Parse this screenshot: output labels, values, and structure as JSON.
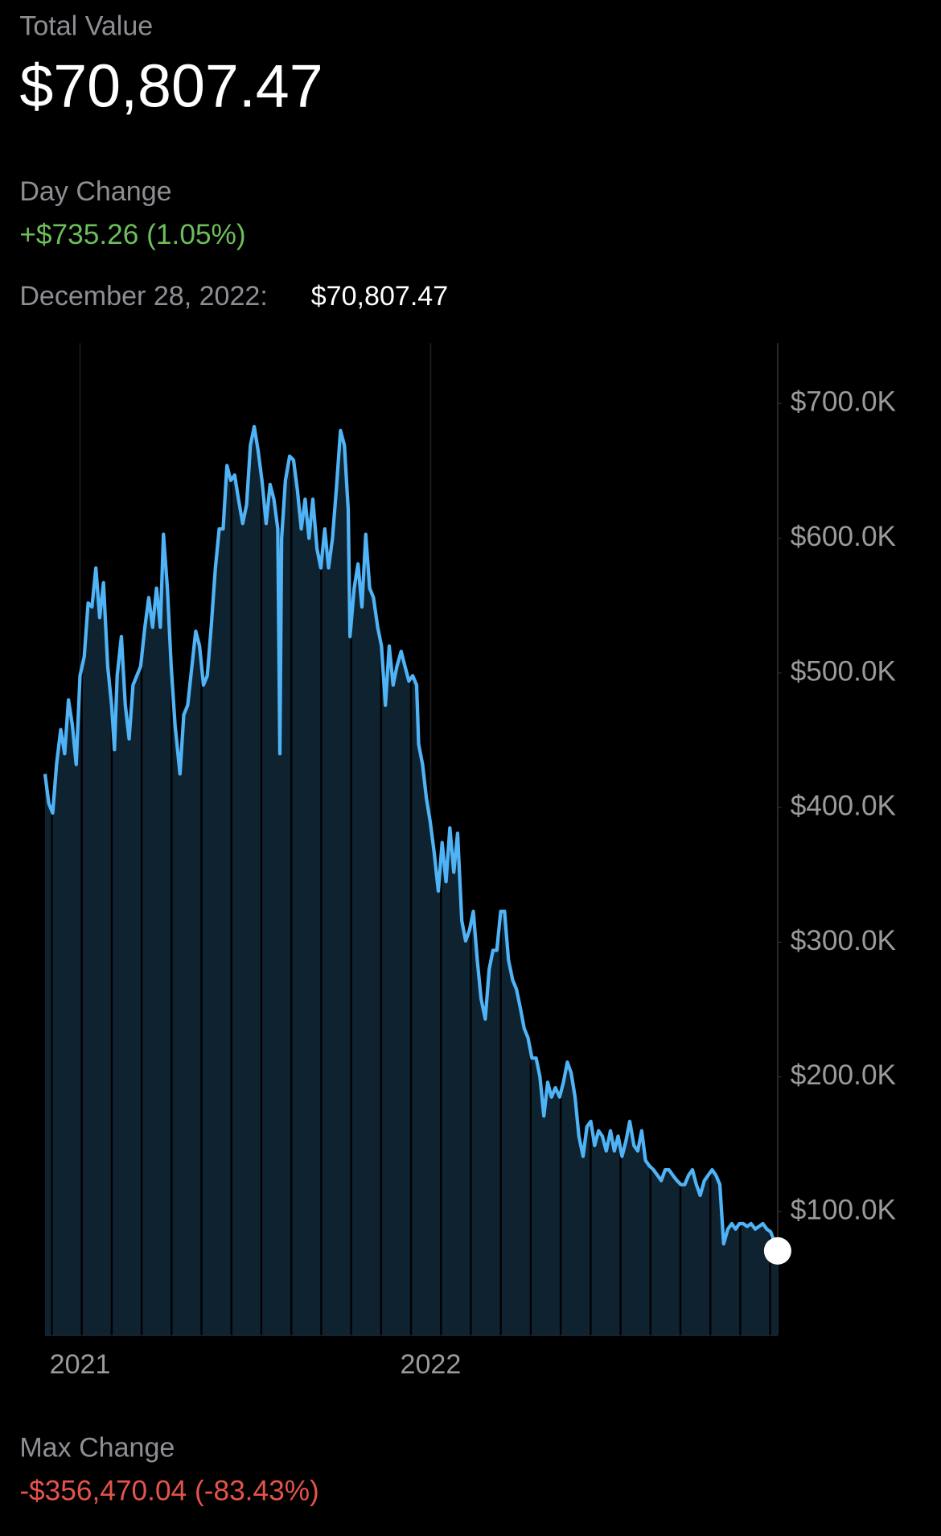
{
  "header": {
    "label": "Total Value",
    "value": "$70,807.47"
  },
  "day_change": {
    "label": "Day Change",
    "value": "+$735.26 (1.05%)"
  },
  "selection": {
    "date": "December 28, 2022:",
    "value": "$70,807.47"
  },
  "max_change": {
    "label": "Max Change",
    "value": "-$356,470.04 (-83.43%)"
  },
  "chart_data": {
    "type": "area",
    "color": "#4fb3f6",
    "fill": "#0f2230",
    "xlim": [
      2020.9,
      2022.99
    ],
    "xticks": [
      2021,
      2022
    ],
    "ylim": [
      8400,
      745000
    ],
    "yticks": [
      {
        "value": 100000,
        "label": "$100.0K"
      },
      {
        "value": 200000,
        "label": "$200.0K"
      },
      {
        "value": 300000,
        "label": "$300.0K"
      },
      {
        "value": 400000,
        "label": "$400.0K"
      },
      {
        "value": 500000,
        "label": "$500.0K"
      },
      {
        "value": 600000,
        "label": "$600.0K"
      },
      {
        "value": 700000,
        "label": "$700.0K"
      }
    ],
    "x": [
      2020.9,
      2020.911,
      2020.922,
      2020.933,
      2020.945,
      2020.956,
      2020.967,
      2020.978,
      2020.989,
      2021.0,
      2021.012,
      2021.023,
      2021.034,
      2021.045,
      2021.056,
      2021.067,
      2021.079,
      2021.09,
      2021.098,
      2021.106,
      2021.118,
      2021.129,
      2021.14,
      2021.151,
      2021.162,
      2021.173,
      2021.185,
      2021.196,
      2021.207,
      2021.218,
      2021.229,
      2021.238,
      2021.249,
      2021.26,
      2021.271,
      2021.285,
      2021.296,
      2021.307,
      2021.319,
      2021.33,
      2021.341,
      2021.352,
      2021.363,
      2021.374,
      2021.386,
      2021.397,
      2021.408,
      2021.419,
      2021.43,
      2021.441,
      2021.452,
      2021.464,
      2021.475,
      2021.486,
      2021.497,
      2021.508,
      2021.519,
      2021.531,
      2021.542,
      2021.553,
      2021.564,
      2021.57,
      2021.575,
      2021.586,
      2021.598,
      2021.609,
      2021.62,
      2021.631,
      2021.642,
      2021.653,
      2021.664,
      2021.676,
      2021.687,
      2021.698,
      2021.709,
      2021.72,
      2021.731,
      2021.743,
      2021.754,
      2021.765,
      2021.77,
      2021.782,
      2021.793,
      2021.804,
      2021.815,
      2021.826,
      2021.837,
      2021.849,
      2021.86,
      2021.871,
      2021.882,
      2021.893,
      2021.904,
      2021.916,
      2021.927,
      2021.938,
      2021.949,
      2021.96,
      2021.966,
      2021.977,
      2021.988,
      2021.999,
      2022.01,
      2022.022,
      2022.033,
      2022.044,
      2022.055,
      2022.066,
      2022.077,
      2022.089,
      2022.1,
      2022.111,
      2022.122,
      2022.133,
      2022.144,
      2022.156,
      2022.167,
      2022.178,
      2022.189,
      2022.2,
      2022.211,
      2022.222,
      2022.234,
      2022.245,
      2022.256,
      2022.267,
      2022.278,
      2022.289,
      2022.301,
      2022.312,
      2022.323,
      2022.334,
      2022.345,
      2022.356,
      2022.368,
      2022.379,
      2022.39,
      2022.401,
      2022.412,
      2022.423,
      2022.435,
      2022.446,
      2022.457,
      2022.468,
      2022.479,
      2022.49,
      2022.501,
      2022.513,
      2022.524,
      2022.535,
      2022.546,
      2022.557,
      2022.568,
      2022.58,
      2022.591,
      2022.602,
      2022.613,
      2022.624,
      2022.636,
      2022.647,
      2022.658,
      2022.669,
      2022.68,
      2022.691,
      2022.703,
      2022.714,
      2022.725,
      2022.736,
      2022.747,
      2022.758,
      2022.769,
      2022.781,
      2022.792,
      2022.803,
      2022.814,
      2022.825,
      2022.836,
      2022.848,
      2022.859,
      2022.87,
      2022.881,
      2022.892,
      2022.903,
      2022.914,
      2022.926,
      2022.937,
      2022.948,
      2022.959,
      2022.97,
      2022.99
    ],
    "values": [
      425000,
      403000,
      396000,
      432000,
      458000,
      440000,
      480000,
      461000,
      432000,
      498000,
      512000,
      552000,
      549000,
      578000,
      541000,
      567000,
      505000,
      476000,
      443000,
      498000,
      527000,
      476000,
      451000,
      491000,
      498000,
      505000,
      534000,
      556000,
      534000,
      563000,
      534000,
      603000,
      563000,
      505000,
      461000,
      425000,
      469000,
      476000,
      505000,
      531000,
      520000,
      491000,
      498000,
      534000,
      578000,
      607000,
      607000,
      654000,
      643000,
      647000,
      629000,
      611000,
      625000,
      669000,
      683000,
      665000,
      643000,
      611000,
      640000,
      629000,
      607000,
      440000,
      600000,
      643000,
      661000,
      658000,
      636000,
      607000,
      629000,
      600000,
      629000,
      592000,
      578000,
      607000,
      578000,
      600000,
      636000,
      680000,
      669000,
      621000,
      527000,
      563000,
      581000,
      549000,
      603000,
      563000,
      556000,
      534000,
      520000,
      476000,
      520000,
      491000,
      505000,
      516000,
      505000,
      494000,
      498000,
      491000,
      447000,
      432000,
      407000,
      389000,
      367000,
      338000,
      374000,
      345000,
      385000,
      352000,
      381000,
      316000,
      301000,
      309000,
      323000,
      287000,
      258000,
      243000,
      280000,
      294000,
      294000,
      323000,
      323000,
      287000,
      272000,
      265000,
      251000,
      236000,
      229000,
      214000,
      214000,
      200000,
      171000,
      196000,
      185000,
      192000,
      185000,
      196000,
      211000,
      203000,
      185000,
      156000,
      141000,
      163000,
      167000,
      149000,
      160000,
      156000,
      145000,
      160000,
      145000,
      156000,
      141000,
      152000,
      167000,
      149000,
      145000,
      160000,
      138000,
      134000,
      131000,
      127000,
      123000,
      131000,
      131000,
      127000,
      123000,
      120000,
      120000,
      127000,
      131000,
      120000,
      112000,
      123000,
      127000,
      131000,
      127000,
      120000,
      76000,
      87000,
      91000,
      87000,
      91000,
      91000,
      89000,
      91000,
      87000,
      89000,
      91000,
      87000,
      85000,
      70807.47
    ]
  }
}
